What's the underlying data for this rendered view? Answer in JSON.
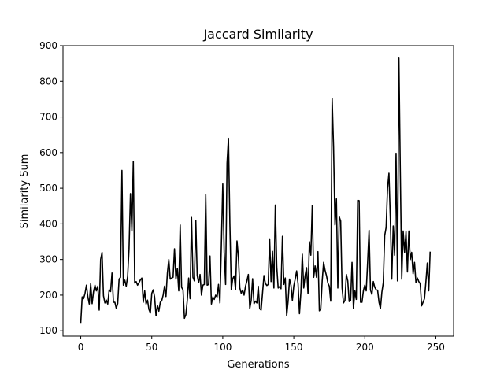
{
  "chart_data": {
    "type": "line",
    "title": "Jaccard Similarity",
    "xlabel": "Generations",
    "ylabel": "Similarity Sum",
    "xlim": [
      -12.5,
      262.5
    ],
    "ylim": [
      85,
      900
    ],
    "xticks": [
      0,
      50,
      100,
      150,
      200,
      250
    ],
    "yticks": [
      100,
      200,
      300,
      400,
      500,
      600,
      700,
      800,
      900
    ],
    "grid": false,
    "line_color": "#000000",
    "series": [
      {
        "values": [
          122,
          195,
          190,
          205,
          228,
          195,
          175,
          232,
          176,
          210,
          228,
          212,
          225,
          158,
          300,
          320,
          198,
          178,
          186,
          175,
          215,
          210,
          262,
          180,
          180,
          163,
          176,
          245,
          250,
          550,
          228,
          242,
          225,
          252,
          330,
          485,
          380,
          575,
          234,
          238,
          228,
          235,
          243,
          248,
          180,
          212,
          175,
          186,
          160,
          150,
          205,
          215,
          195,
          142,
          171,
          155,
          180,
          184,
          200,
          225,
          196,
          262,
          300,
          245,
          248,
          250,
          330,
          245,
          275,
          212,
          397,
          222,
          215,
          135,
          145,
          185,
          248,
          190,
          418,
          250,
          240,
          410,
          255,
          235,
          258,
          200,
          228,
          230,
          482,
          228,
          230,
          310,
          175,
          195,
          188,
          200,
          195,
          230,
          178,
          340,
          512,
          320,
          230,
          570,
          640,
          400,
          215,
          246,
          254,
          215,
          352,
          308,
          220,
          205,
          214,
          200,
          225,
          240,
          258,
          162,
          185,
          246,
          176,
          183,
          178,
          225,
          162,
          158,
          206,
          255,
          233,
          227,
          230,
          358,
          238,
          323,
          220,
          453,
          280,
          220,
          224,
          218,
          365,
          230,
          248,
          142,
          183,
          245,
          228,
          185,
          226,
          245,
          268,
          232,
          148,
          208,
          315,
          220,
          255,
          277,
          205,
          350,
          312,
          452,
          250,
          282,
          250,
          322,
          156,
          162,
          240,
          292,
          270,
          255,
          234,
          225,
          183,
          752,
          615,
          397,
          470,
          220,
          420,
          408,
          220,
          178,
          185,
          258,
          240,
          182,
          185,
          292,
          162,
          212,
          188,
          466,
          465,
          180,
          180,
          212,
          228,
          212,
          294,
          382,
          214,
          202,
          238,
          222,
          215,
          214,
          180,
          162,
          208,
          235,
          367,
          390,
          500,
          542,
          410,
          245,
          394,
          312,
          598,
          240,
          865,
          545,
          245,
          380,
          320,
          378,
          265,
          380,
          300,
          320,
          260,
          292,
          235,
          248,
          238,
          232,
          170,
          180,
          190,
          237,
          290,
          212,
          322
        ]
      }
    ]
  }
}
